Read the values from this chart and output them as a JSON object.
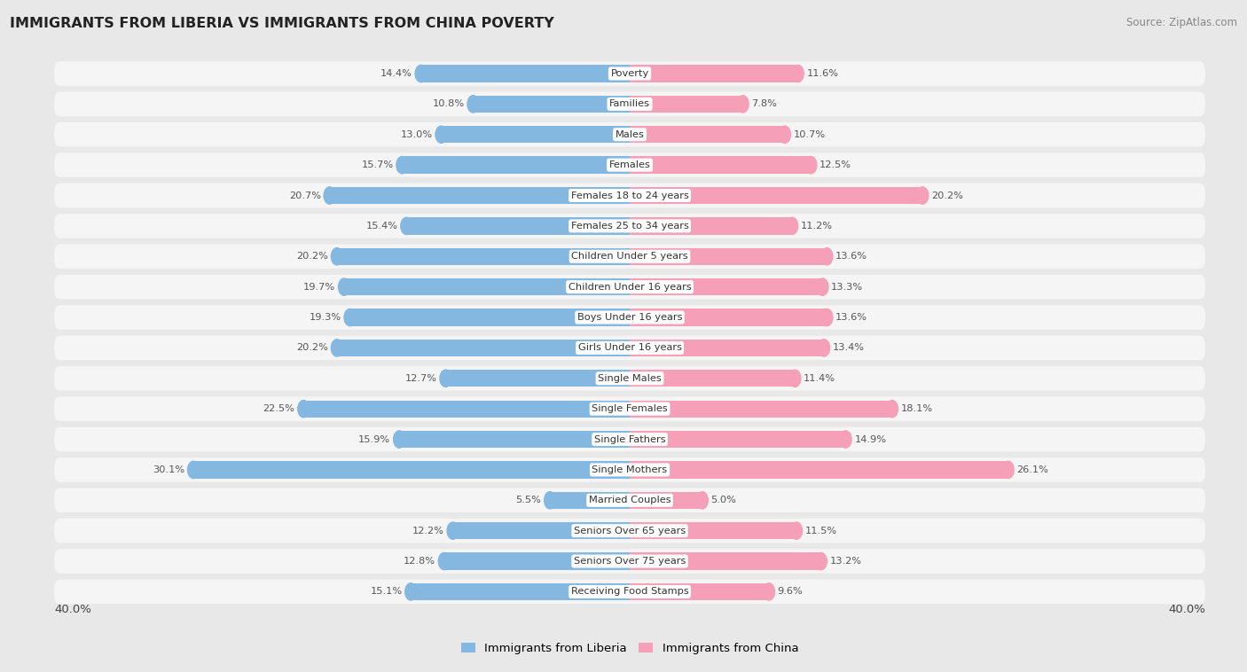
{
  "title": "IMMIGRANTS FROM LIBERIA VS IMMIGRANTS FROM CHINA POVERTY",
  "source": "Source: ZipAtlas.com",
  "categories": [
    "Poverty",
    "Families",
    "Males",
    "Females",
    "Females 18 to 24 years",
    "Females 25 to 34 years",
    "Children Under 5 years",
    "Children Under 16 years",
    "Boys Under 16 years",
    "Girls Under 16 years",
    "Single Males",
    "Single Females",
    "Single Fathers",
    "Single Mothers",
    "Married Couples",
    "Seniors Over 65 years",
    "Seniors Over 75 years",
    "Receiving Food Stamps"
  ],
  "liberia_values": [
    14.4,
    10.8,
    13.0,
    15.7,
    20.7,
    15.4,
    20.2,
    19.7,
    19.3,
    20.2,
    12.7,
    22.5,
    15.9,
    30.1,
    5.5,
    12.2,
    12.8,
    15.1
  ],
  "china_values": [
    11.6,
    7.8,
    10.7,
    12.5,
    20.2,
    11.2,
    13.6,
    13.3,
    13.6,
    13.4,
    11.4,
    18.1,
    14.9,
    26.1,
    5.0,
    11.5,
    13.2,
    9.6
  ],
  "liberia_color": "#85b8e0",
  "china_color": "#f5a0b8",
  "axis_max": 40.0,
  "background_color": "#e8e8e8",
  "bar_bg_color": "#f5f5f5",
  "label_color": "#555555",
  "title_color": "#222222",
  "legend_liberia": "Immigrants from Liberia",
  "legend_china": "Immigrants from China"
}
